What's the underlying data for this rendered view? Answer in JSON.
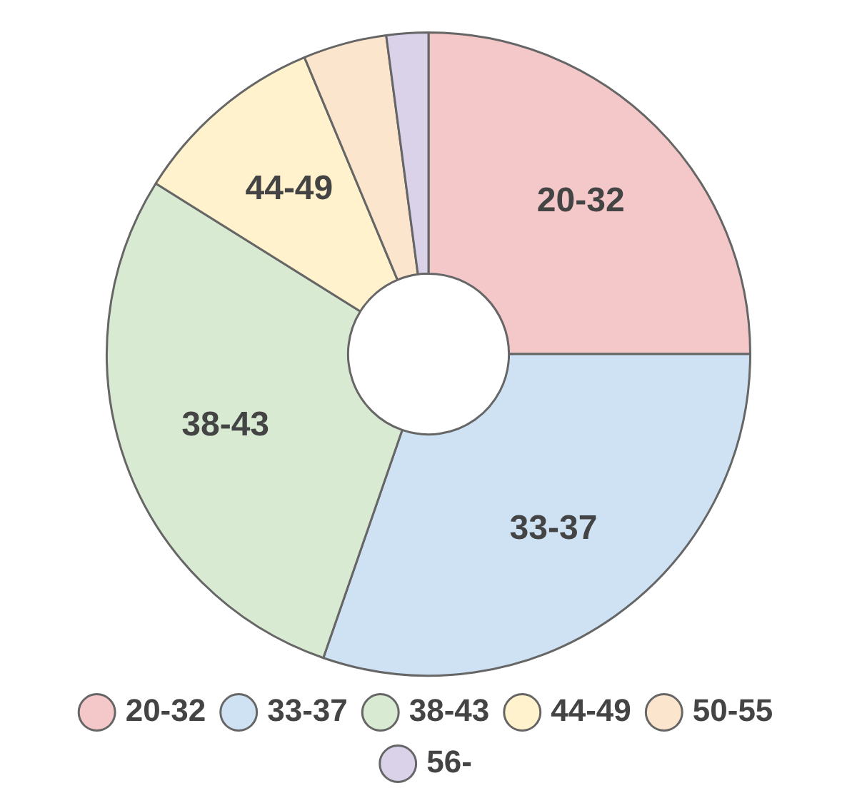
{
  "chart_data": {
    "type": "donut",
    "categories": [
      "20-32",
      "33-37",
      "38-43",
      "44-49",
      "50-55",
      "56-"
    ],
    "values": [
      25,
      30.3,
      28.6,
      9.8,
      4.2,
      2.1
    ],
    "colors": [
      "#f4c7c8",
      "#cfe2f3",
      "#d9ead3",
      "#fff2cc",
      "#fce5cd",
      "#d9d2e9"
    ],
    "legend": "bottom"
  }
}
